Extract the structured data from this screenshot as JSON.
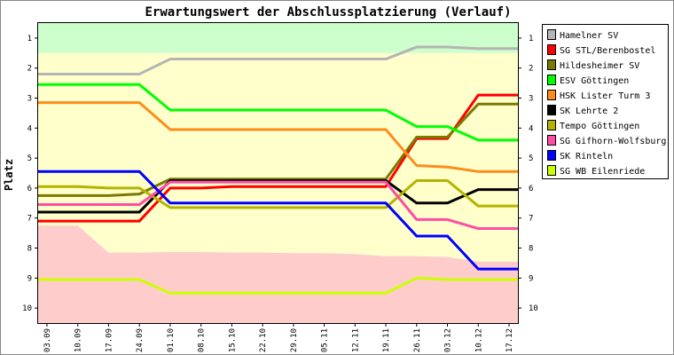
{
  "chart_data": {
    "type": "line",
    "title": "Erwartungswert der Abschlussplatzierung (Verlauf)",
    "ylabel": "Platz",
    "xlabel": "",
    "y_ticks": [
      "1",
      "2",
      "3",
      "4",
      "5",
      "6",
      "7",
      "8",
      "9",
      "10"
    ],
    "ylim": [
      0.5,
      10.5
    ],
    "y_inverted": true,
    "grid": false,
    "legend_position": "right",
    "x": [
      "03.09",
      "10.09",
      "17.09",
      "24.09",
      "01.10",
      "08.10",
      "15.10",
      "22.10",
      "29.10",
      "05.11",
      "12.11",
      "19.11",
      "26.11",
      "03.12",
      "10.12",
      "17.12"
    ],
    "bands": [
      {
        "name": "top",
        "color": "#ccffcc",
        "boundary": [
          1.5,
          1.5,
          1.5,
          1.5,
          1.5,
          1.5,
          1.5,
          1.5,
          1.5,
          1.5,
          1.5,
          1.5,
          1.5,
          1.5,
          1.5,
          1.5
        ]
      },
      {
        "name": "middle",
        "color": "#ffffcc"
      },
      {
        "name": "bottom",
        "color": "#ffcccc",
        "boundary": [
          7.25,
          7.25,
          8.15,
          8.15,
          8.13,
          8.13,
          8.15,
          8.15,
          8.17,
          8.17,
          8.2,
          8.27,
          8.27,
          8.3,
          8.45,
          8.45
        ]
      }
    ],
    "series": [
      {
        "name": "Hamelner SV",
        "color": "#b4b4b4",
        "values": [
          2.2,
          2.2,
          2.2,
          2.2,
          1.7,
          1.7,
          1.7,
          1.7,
          1.7,
          1.7,
          1.7,
          1.7,
          1.3,
          1.3,
          1.35,
          1.35
        ]
      },
      {
        "name": "SG STL/Berenbostel",
        "color": "#ff0000",
        "values": [
          7.1,
          7.1,
          7.1,
          7.1,
          6.0,
          6.0,
          5.95,
          5.95,
          5.95,
          5.95,
          5.95,
          5.95,
          4.35,
          4.35,
          2.9,
          2.9
        ]
      },
      {
        "name": "Hildesheimer SV",
        "color": "#7a7a00",
        "values": [
          6.25,
          6.25,
          6.25,
          6.2,
          5.7,
          5.7,
          5.7,
          5.7,
          5.7,
          5.7,
          5.7,
          5.7,
          4.3,
          4.3,
          3.2,
          3.2
        ]
      },
      {
        "name": "ESV Göttingen",
        "color": "#00ff00",
        "values": [
          2.55,
          2.55,
          2.55,
          2.55,
          3.4,
          3.4,
          3.4,
          3.4,
          3.4,
          3.4,
          3.4,
          3.4,
          3.95,
          3.95,
          4.4,
          4.4
        ]
      },
      {
        "name": "HSK Lister Turm 3",
        "color": "#ff8c1a",
        "values": [
          3.15,
          3.15,
          3.15,
          3.15,
          4.05,
          4.05,
          4.05,
          4.05,
          4.05,
          4.05,
          4.05,
          4.05,
          5.25,
          5.3,
          5.45,
          5.45
        ]
      },
      {
        "name": "SK Lehrte 2",
        "color": "#000000",
        "values": [
          6.8,
          6.8,
          6.8,
          6.8,
          5.75,
          5.75,
          5.75,
          5.75,
          5.75,
          5.75,
          5.75,
          5.75,
          6.5,
          6.5,
          6.05,
          6.05
        ]
      },
      {
        "name": "Tempo Göttingen",
        "color": "#b4b400",
        "values": [
          5.95,
          5.95,
          6.0,
          6.0,
          6.65,
          6.65,
          6.65,
          6.65,
          6.65,
          6.65,
          6.65,
          6.65,
          5.75,
          5.75,
          6.6,
          6.6
        ]
      },
      {
        "name": "SG Gifhorn-Wolfsburg",
        "color": "#ff4da6",
        "values": [
          6.55,
          6.55,
          6.55,
          6.55,
          5.8,
          5.8,
          5.8,
          5.8,
          5.8,
          5.8,
          5.8,
          5.8,
          7.05,
          7.05,
          7.35,
          7.35
        ]
      },
      {
        "name": "SK Rinteln",
        "color": "#0000ff",
        "values": [
          5.45,
          5.45,
          5.45,
          5.45,
          6.5,
          6.5,
          6.5,
          6.5,
          6.5,
          6.5,
          6.5,
          6.5,
          7.6,
          7.6,
          8.7,
          8.7
        ]
      },
      {
        "name": "SG WB Eilenriede",
        "color": "#ccff00",
        "values": [
          9.05,
          9.05,
          9.05,
          9.05,
          9.5,
          9.5,
          9.5,
          9.5,
          9.5,
          9.5,
          9.5,
          9.5,
          9.0,
          9.05,
          9.05,
          9.05
        ]
      }
    ]
  }
}
